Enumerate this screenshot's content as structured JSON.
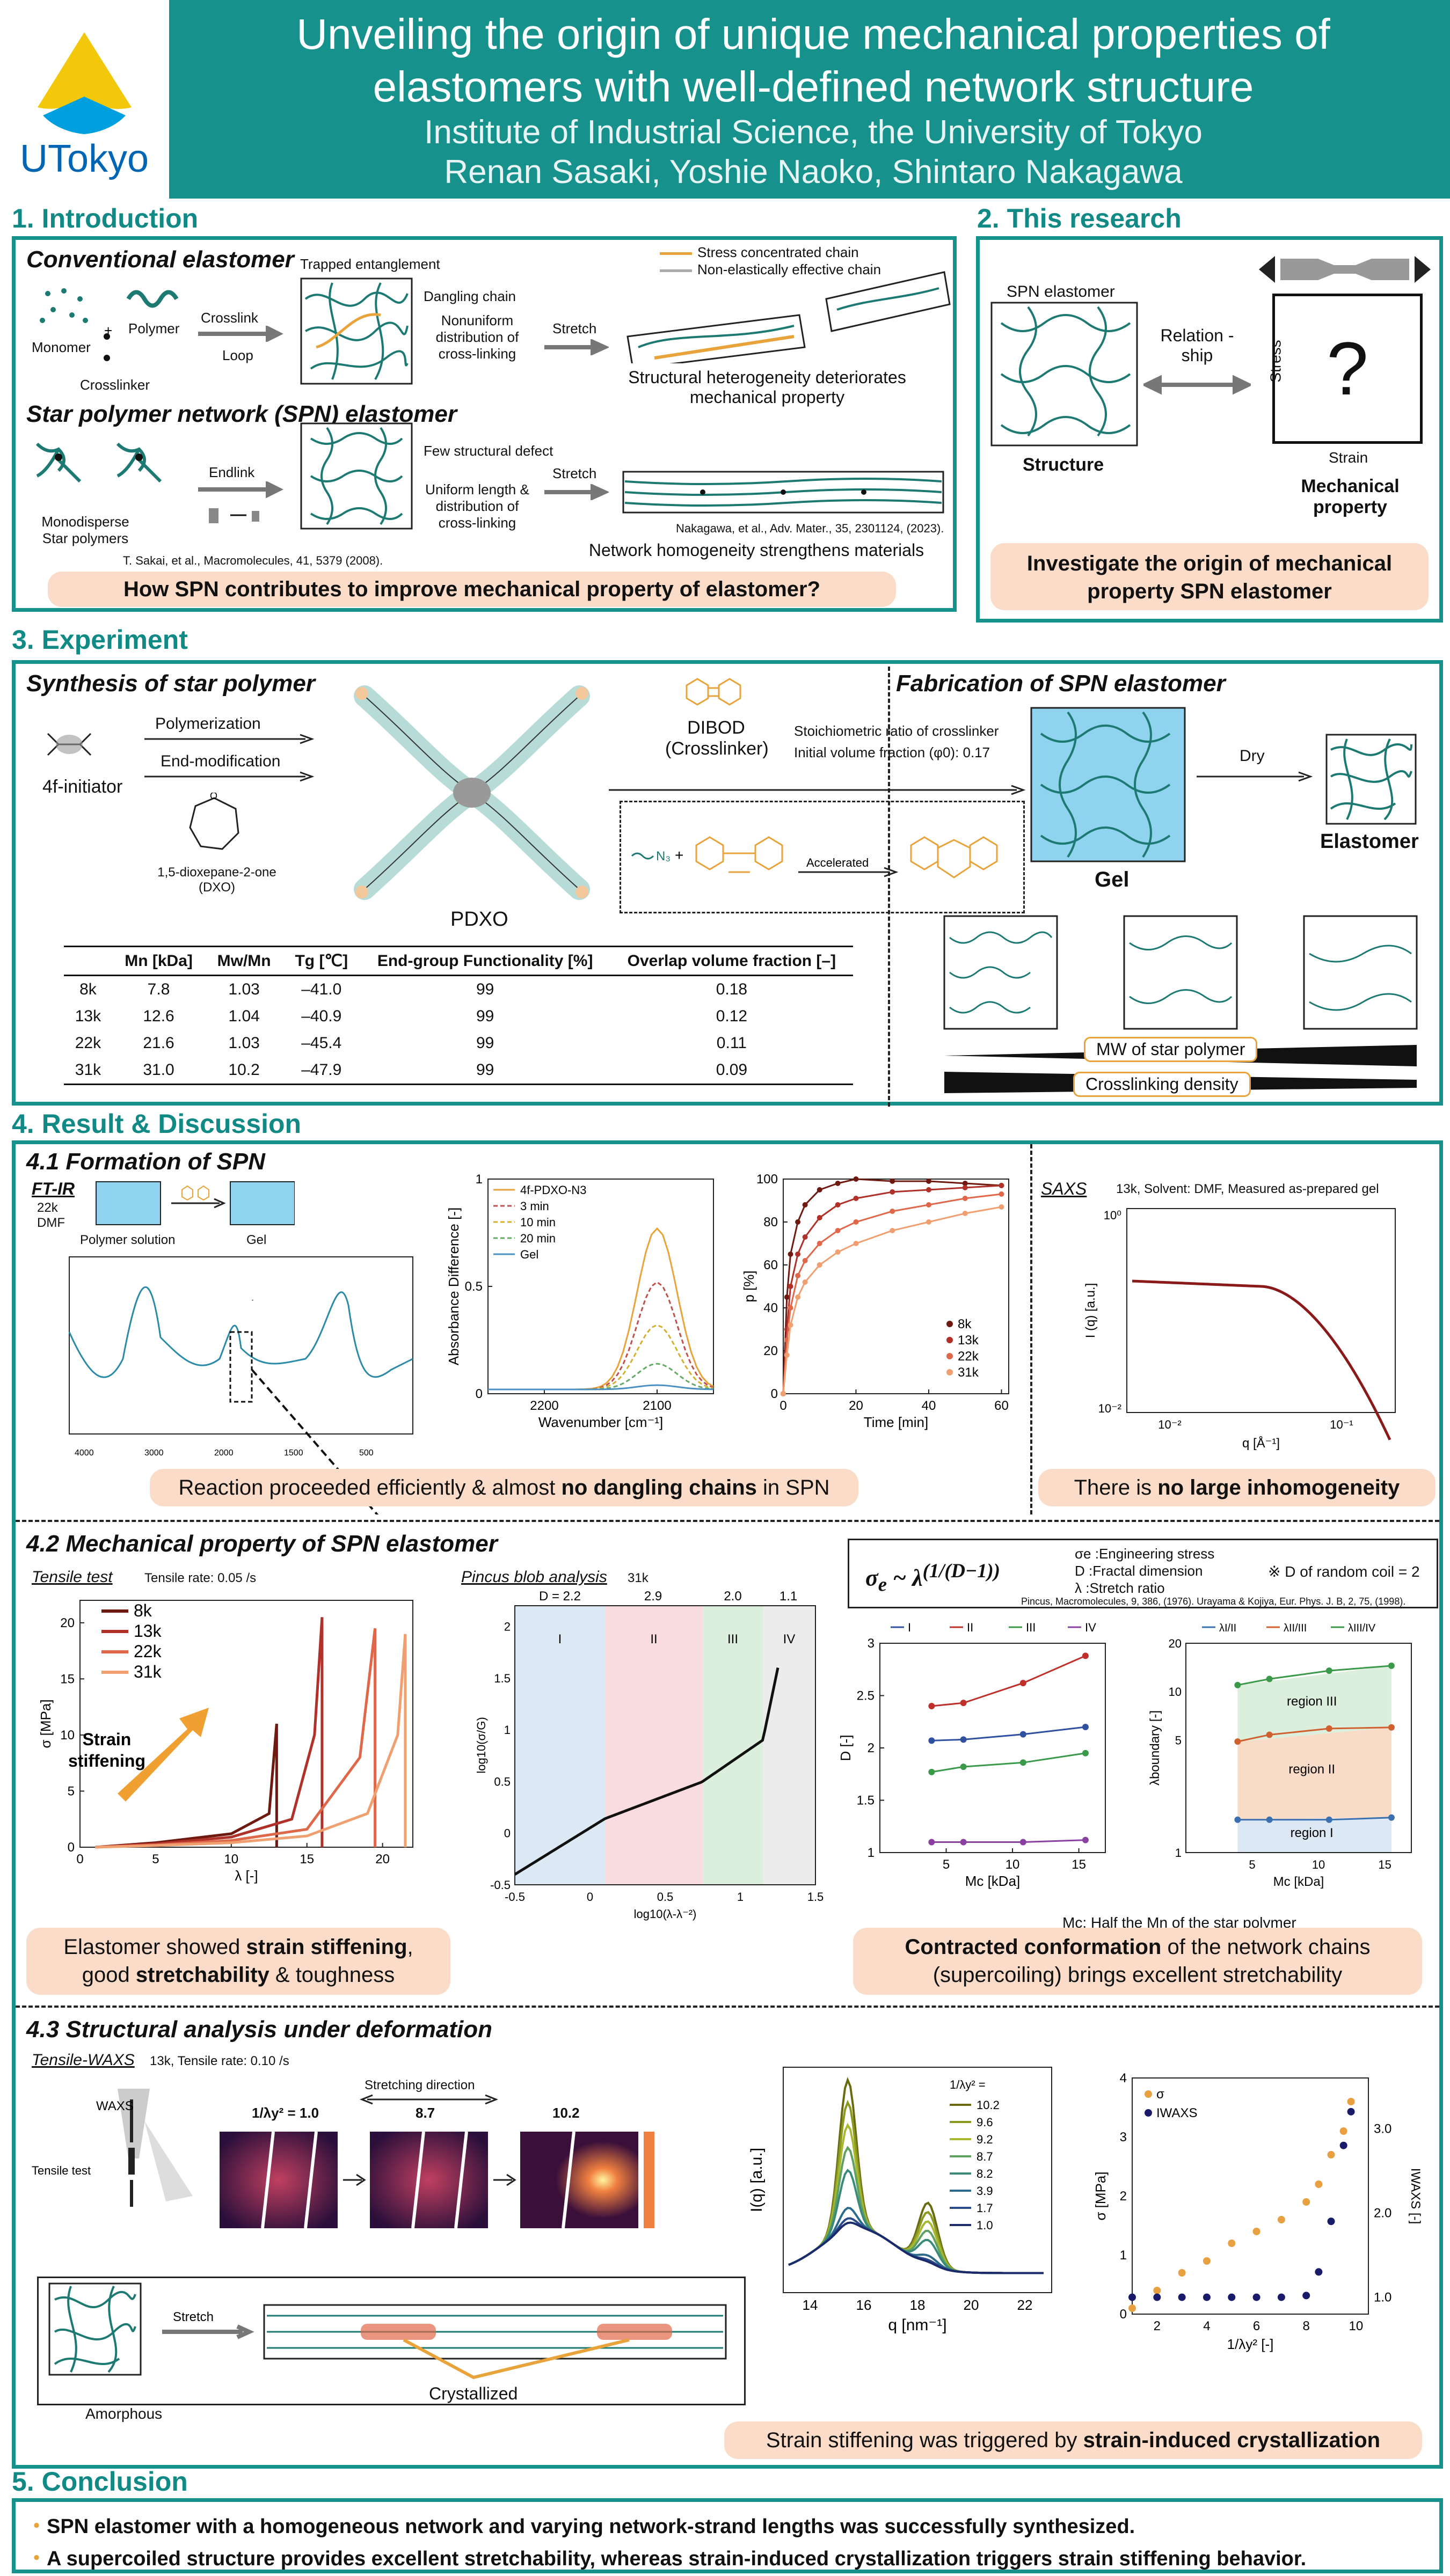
{
  "header": {
    "logo_text": "UTokyo",
    "title_line1": "Unveiling the origin of unique mechanical properties of",
    "title_line2": "elastomers with well-defined network structure",
    "institute": "Institute of Industrial Science, the University of Tokyo",
    "authors": "Renan Sasaki, Yoshie Naoko, Shintaro Nakagawa"
  },
  "intro": {
    "title": "1. Introduction",
    "conventional": "Conventional elastomer",
    "monomer": "Monomer",
    "polymer": "Polymer",
    "crosslinker": "Crosslinker",
    "crosslink": "Crosslink",
    "loop": "Loop",
    "trapped": "Trapped entanglement",
    "dangling": "Dangling chain",
    "nonuniform": "Nonuniform distribution of cross-linking",
    "stretch": "Stretch",
    "legend_stress": "Stress concentrated chain",
    "legend_noneff": "Non-elastically effective chain",
    "hetero": "Structural heterogeneity deteriorates mechanical property",
    "spn": "Star polymer network (SPN) elastomer",
    "mono_star": "Monodisperse Star polymers",
    "endlink": "Endlink",
    "few_defect": "Few structural defect",
    "uniform": "Uniform length & distribution of cross-linking",
    "ref1": "T. Sakai, et al., Macromolecules, 41, 5379 (2008).",
    "ref2": "Nakagawa, et al., Adv. Mater., 35, 2301124, (2023).",
    "homog": "Network homogeneity strengthens materials",
    "question": "How SPN contributes to improve mechanical property of elastomer?"
  },
  "research": {
    "title": "2. This research",
    "spn": "SPN elastomer",
    "relation": "Relation -ship",
    "stress": "Stress",
    "strain": "Strain",
    "qmark": "?",
    "structure": "Structure",
    "mech": "Mechanical property",
    "goal": "Investigate the origin of mechanical property SPN elastomer"
  },
  "experiment": {
    "title": "3. Experiment",
    "synth": "Synthesis of star polymer",
    "fab": "Fabrication of SPN elastomer",
    "initiator": "4f-initiator",
    "polymerization": "Polymerization",
    "endmod": "End-modification",
    "dxo": "1,5-dioxepane-2-one (DXO)",
    "pdxo": "PDXO",
    "dibod": "DIBOD (Crosslinker)",
    "stoich": "Stoichiometric ratio of crosslinker",
    "initvol": "Initial volume fraction (φ0): 0.17",
    "accel": "Accelerated",
    "gel": "Gel",
    "dry": "Dry",
    "elastomer": "Elastomer",
    "mw": "MW of star polymer",
    "xld": "Crosslinking density",
    "table_head": [
      "Mn [kDa]",
      "Mw/Mn",
      "Tg [℃]",
      "End-group Functionality [%]",
      "Overlap volume fraction [–]"
    ],
    "table_rows": [
      [
        "8k",
        "7.8",
        "1.03",
        "–41.0",
        "99",
        "0.18"
      ],
      [
        "13k",
        "12.6",
        "1.04",
        "–40.9",
        "99",
        "0.12"
      ],
      [
        "22k",
        "21.6",
        "1.03",
        "–45.4",
        "99",
        "0.11"
      ],
      [
        "31k",
        "31.0",
        "10.2",
        "–47.9",
        "99",
        "0.09"
      ]
    ]
  },
  "results": {
    "title": "4. Result & Discussion",
    "s41": "4.1 Formation of SPN",
    "ftir": "FT-IR",
    "ftir_cond": "22k DMF",
    "poly_sol": "Polymer solution",
    "gel": "Gel",
    "ir_legend": [
      "4f-PDXO-N3",
      "3 min",
      "10 min",
      "20 min",
      "Gel"
    ],
    "ir_ylabel": "Absorbance Difference [-]",
    "ir_xlabel": "Wavenumber [cm⁻¹]",
    "p_ylabel": "p [%]",
    "p_xlabel": "Time [min]",
    "saxs": "SAXS",
    "saxs_cond": "13k, Solvent: DMF, Measured as-prepared gel",
    "saxs_ylabel": "I (q) [a.u.]",
    "saxs_xlabel": "q [Å⁻¹]",
    "conc41a_pre": "Reaction proceeded efficiently & almost ",
    "conc41a_b": "no dangling chains",
    "conc41a_post": " in SPN",
    "conc41b_pre": "There is ",
    "conc41b_b": "no large inhomogeneity",
    "s42": "4.2 Mechanical property of SPN elastomer",
    "tensile": "Tensile test",
    "tensile_rate": "Tensile rate: 0.05 /s",
    "ss_ylabel": "σ [MPa]",
    "ss_xlabel": "λ [-]",
    "strain_stiff": "Strain stiffening",
    "pincus": "Pincus blob analysis",
    "pincus_cond": "31k",
    "pincus_ylabel": "log10(σ/G)",
    "pincus_xlabel": "log10(λ-λ⁻²)",
    "region_labels": [
      "I",
      "II",
      "III",
      "IV"
    ],
    "formula_def1": "σe :Engineering stress",
    "formula_def2": "D :Fractal dimension",
    "formula_def3": "λ :Stretch ratio",
    "formula_note": "※ D of random coil = 2",
    "formula_ref": "Pincus, Macromolecules, 9, 386, (1976). Urayama & Kojiya, Eur. Phys. J. B, 2, 75, (1998).",
    "d_ylabel": "D [-]",
    "mc_xlabel": "Mc [kDa]",
    "lb_ylabel": "λboundary [-]",
    "lb_legend": [
      "λI/II",
      "λII/III",
      "λIII/IV"
    ],
    "regions_text": [
      "region III",
      "region II",
      "region I"
    ],
    "mc_note": "Mc: Half the Mn of the star polymer",
    "conc42a_1": "Elastomer showed ",
    "conc42a_b1": "strain stiffening",
    "conc42a_2": "good ",
    "conc42a_b2": "stretchability",
    "conc42a_3": " & toughness",
    "conc42b_b": "Contracted conformation",
    "conc42b_1": " of the network chains",
    "conc42b_2": "(supercoiling) brings excellent stretchability",
    "s43": "4.3 Structural analysis under deformation",
    "waxs": "Tensile-WAXS",
    "waxs_cond": "13k, Tensile rate: 0.10 /s",
    "waxs_word": "WAXS",
    "tensile_test": "Tensile test",
    "stretch_dir": "Stretching direction",
    "frames": [
      "1/λy² = 1.0",
      "8.7",
      "10.2"
    ],
    "amorphous": "Amorphous",
    "stretch": "Stretch",
    "crystallized": "Crystallized",
    "iq_ylabel": "I(q) [a.u.]",
    "iq_xlabel": "q [nm⁻¹]",
    "iq_legend_title": "1/λy² =",
    "iq_legend": [
      "10.2",
      "9.6",
      "9.2",
      "8.7",
      "8.2",
      "3.9",
      "1.7",
      "1.0"
    ],
    "sw_legend": [
      "σ",
      "IWAXS"
    ],
    "sw_ylabel": "σ [MPa]",
    "sw_xlabel": "1/λy² [-]",
    "sw_y2label": "IWAXS [-]",
    "conc43_pre": "Strain stiffening was triggered by ",
    "conc43_b": "strain-induced crystallization"
  },
  "conclusion": {
    "title": "5. Conclusion",
    "p1": "SPN elastomer with a homogeneous network and varying network-strand lengths was successfully synthesized.",
    "p2": "A supercoiled structure provides excellent stretchability, whereas strain-induced crystallization triggers strain stiffening behavior."
  },
  "colors": {
    "teal": "#16918b",
    "peach": "#fbdcc8",
    "s8k": "#6e1a10",
    "s13k": "#b0302a",
    "s22k": "#e0684a",
    "s31k": "#f0a070"
  },
  "chart_data": [
    {
      "type": "line",
      "title": "",
      "xlabel": "λ [-]",
      "ylabel": "σ [MPa]",
      "xlim": [
        0,
        22
      ],
      "ylim": [
        0,
        22
      ],
      "series": [
        {
          "name": "8k",
          "x": [
            1,
            5,
            10,
            12.5,
            13,
            13
          ],
          "y": [
            0,
            0.4,
            1.2,
            3,
            11,
            0
          ]
        },
        {
          "name": "13k",
          "x": [
            1,
            5,
            10,
            14,
            15.5,
            16,
            16
          ],
          "y": [
            0,
            0.3,
            0.9,
            2.5,
            10,
            20.5,
            0
          ]
        },
        {
          "name": "22k",
          "x": [
            1,
            5,
            10,
            15,
            18.5,
            19.5,
            19.5
          ],
          "y": [
            0,
            0.2,
            0.6,
            1.6,
            8,
            19.5,
            0
          ]
        },
        {
          "name": "31k",
          "x": [
            1,
            5,
            10,
            15,
            19,
            21,
            21.5,
            21.5
          ],
          "y": [
            0,
            0.15,
            0.4,
            1.0,
            3,
            10,
            19,
            0
          ]
        }
      ]
    },
    {
      "type": "line",
      "title": "",
      "xlabel": "Time [min]",
      "ylabel": "p [%]",
      "xlim": [
        0,
        62
      ],
      "ylim": [
        0,
        100
      ],
      "series": [
        {
          "name": "8k",
          "x": [
            0,
            1,
            2,
            4,
            6,
            10,
            15,
            20,
            30,
            40,
            50,
            60
          ],
          "y": [
            0,
            45,
            65,
            80,
            88,
            95,
            98,
            100,
            99,
            99,
            98,
            97
          ]
        },
        {
          "name": "13k",
          "x": [
            0,
            1,
            2,
            4,
            6,
            10,
            15,
            20,
            30,
            40,
            50,
            60
          ],
          "y": [
            0,
            30,
            50,
            65,
            73,
            82,
            88,
            91,
            94,
            95,
            96,
            97
          ]
        },
        {
          "name": "22k",
          "x": [
            0,
            1,
            2,
            4,
            6,
            10,
            15,
            20,
            30,
            40,
            50,
            60
          ],
          "y": [
            0,
            25,
            40,
            55,
            62,
            70,
            76,
            80,
            85,
            88,
            91,
            93
          ]
        },
        {
          "name": "31k",
          "x": [
            0,
            1,
            2,
            4,
            6,
            10,
            15,
            20,
            30,
            40,
            50,
            60
          ],
          "y": [
            0,
            18,
            32,
            45,
            52,
            60,
            66,
            70,
            76,
            80,
            84,
            87
          ]
        }
      ]
    },
    {
      "type": "line",
      "title": "",
      "xlabel": "Mc [kDa]",
      "ylabel": "D [-]",
      "xlim": [
        0,
        17
      ],
      "ylim": [
        1,
        3
      ],
      "series": [
        {
          "name": "I",
          "x": [
            3.9,
            6.3,
            10.8,
            15.5
          ],
          "y": [
            2.07,
            2.08,
            2.13,
            2.2
          ]
        },
        {
          "name": "II",
          "x": [
            3.9,
            6.3,
            10.8,
            15.5
          ],
          "y": [
            2.4,
            2.43,
            2.62,
            2.88
          ]
        },
        {
          "name": "III",
          "x": [
            3.9,
            6.3,
            10.8,
            15.5
          ],
          "y": [
            1.77,
            1.82,
            1.86,
            1.95
          ]
        },
        {
          "name": "IV",
          "x": [
            3.9,
            6.3,
            10.8,
            15.5
          ],
          "y": [
            1.1,
            1.1,
            1.1,
            1.12
          ]
        }
      ]
    },
    {
      "type": "line",
      "title": "",
      "xlabel": "Mc [kDa]",
      "ylabel": "λboundary [-]",
      "xlim": [
        0,
        17
      ],
      "ylim": [
        1,
        20
      ],
      "series": [
        {
          "name": "λI/II",
          "x": [
            3.9,
            6.3,
            10.8,
            15.5
          ],
          "y": [
            1.6,
            1.6,
            1.6,
            1.65
          ]
        },
        {
          "name": "λII/III",
          "x": [
            3.9,
            6.3,
            10.8,
            15.5
          ],
          "y": [
            4.9,
            5.4,
            5.9,
            6.0
          ]
        },
        {
          "name": "λIII/IV",
          "x": [
            3.9,
            6.3,
            10.8,
            15.5
          ],
          "y": [
            11,
            12,
            13.5,
            14.5
          ]
        }
      ]
    },
    {
      "type": "line",
      "title": "",
      "xlabel": "q [nm⁻¹]",
      "ylabel": "I(q) [a.u.]",
      "xlim": [
        13,
        23
      ],
      "series": [
        {
          "name": "10.2",
          "peaks": [
            15.4,
            18.4
          ]
        },
        {
          "name": "1.0",
          "peaks": []
        }
      ]
    },
    {
      "type": "scatter",
      "title": "",
      "xlabel": "1/λy² [-]",
      "ylabel": "σ [MPa]",
      "xlim": [
        1,
        10.5
      ],
      "ylim": [
        0,
        4
      ],
      "series": [
        {
          "name": "σ",
          "x": [
            1,
            2,
            3,
            4,
            5,
            6,
            7,
            8,
            8.5,
            9,
            9.5,
            9.8
          ],
          "y": [
            0.1,
            0.4,
            0.7,
            0.9,
            1.2,
            1.4,
            1.6,
            1.9,
            2.2,
            2.7,
            3.1,
            3.6
          ]
        },
        {
          "name": "IWAXS",
          "x": [
            1,
            2,
            3,
            4,
            5,
            6,
            7,
            8,
            8.5,
            9,
            9.5,
            9.8
          ],
          "y": [
            1.0,
            1.0,
            1.0,
            1.0,
            1.0,
            1.0,
            1.0,
            1.02,
            1.3,
            1.9,
            2.8,
            3.2
          ]
        }
      ]
    }
  ]
}
